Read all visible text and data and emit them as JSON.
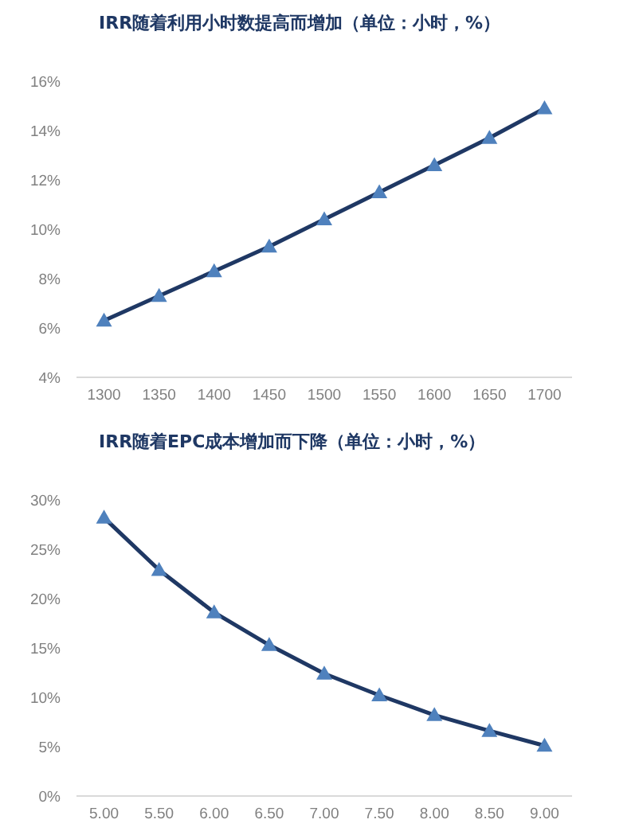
{
  "chart_data": [
    {
      "type": "line",
      "title": "IRR随着利用小时数提高而增加（单位：小时，%）",
      "categories": [
        "1300",
        "1350",
        "1400",
        "1450",
        "1500",
        "1550",
        "1600",
        "1650",
        "1700"
      ],
      "series": [
        {
          "color": "#1f3864",
          "colors": [
            "#4f81bd",
            "#4f81bd",
            "#4f81bd",
            "#4f81bd",
            "#4f81bd",
            "#4f81bd",
            "#4f81bd",
            "#4f81bd",
            "#4f81bd"
          ],
          "values": [
            6.3,
            7.3,
            8.3,
            9.3,
            10.4,
            11.5,
            12.6,
            13.7,
            14.9
          ]
        }
      ],
      "ylim": [
        4,
        16
      ],
      "yticks": [
        {
          "value": 4,
          "label": "4%"
        },
        {
          "value": 6,
          "label": "6%"
        },
        {
          "value": 8,
          "label": "8%"
        },
        {
          "value": 10,
          "label": "10%"
        },
        {
          "value": 12,
          "label": "12%"
        },
        {
          "value": 14,
          "label": "14%"
        },
        {
          "value": 16,
          "label": "16%"
        }
      ],
      "marker": "triangle",
      "line_style": "solid"
    },
    {
      "type": "line",
      "title": "IRR随着EPC成本增加而下降（单位：小时，%）",
      "categories": [
        "5.00",
        "5.50",
        "6.00",
        "6.50",
        "7.00",
        "7.50",
        "8.00",
        "8.50",
        "9.00"
      ],
      "series": [
        {
          "color": "#1f3864",
          "colors": [
            "#4f81bd",
            "#4f81bd",
            "#4f81bd",
            "#4f81bd",
            "#4f81bd",
            "#4f81bd",
            "#4f81bd",
            "#4f81bd",
            "#4f81bd"
          ],
          "values": [
            28.2,
            22.9,
            18.6,
            15.3,
            12.4,
            10.2,
            8.2,
            6.6,
            5.1
          ]
        }
      ],
      "ylim": [
        0,
        30
      ],
      "yticks": [
        {
          "value": 0,
          "label": "0%"
        },
        {
          "value": 5,
          "label": "5%"
        },
        {
          "value": 10,
          "label": "10%"
        },
        {
          "value": 15,
          "label": "15%"
        },
        {
          "value": 20,
          "label": "20%"
        },
        {
          "value": 25,
          "label": "25%"
        },
        {
          "value": 30,
          "label": "30%"
        }
      ],
      "marker": "triangle",
      "line_style": "solid"
    }
  ]
}
